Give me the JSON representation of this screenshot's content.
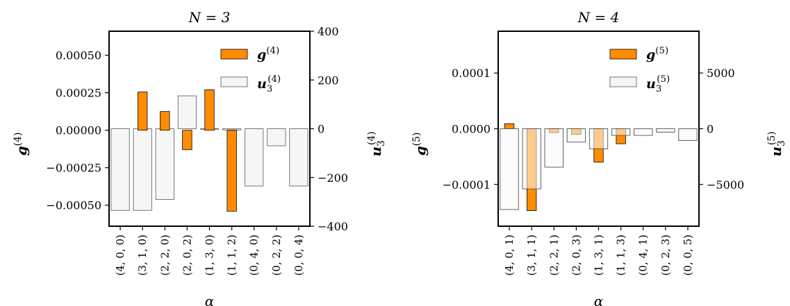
{
  "chart_data": [
    {
      "type": "bar",
      "title": "N = 3",
      "xlabel": "α",
      "categories": [
        "(4, 0, 0)",
        "(3, 1, 0)",
        "(2, 2, 0)",
        "(2, 0, 2)",
        "(1, 3, 0)",
        "(1, 1, 2)",
        "(0, 4, 0)",
        "(0, 2, 2)",
        "(0, 0, 4)"
      ],
      "left_axis": {
        "label": "g(4)",
        "ylim": [
          -0.00064,
          0.00066
        ],
        "ticks": [
          -0.0005,
          -0.00025,
          0.0,
          0.00025,
          0.0005
        ],
        "tick_labels": [
          "−0.00050",
          "−0.00025",
          "0.00000",
          "0.00025",
          "0.00050"
        ]
      },
      "right_axis": {
        "label": "u3(4)",
        "ylim": [
          -400,
          400
        ],
        "ticks": [
          -400,
          -200,
          0,
          200,
          400
        ],
        "tick_labels": [
          "−400",
          "−200",
          "0",
          "200",
          "400"
        ]
      },
      "series": [
        {
          "name": "g(4)",
          "axis": "left",
          "color": "#ff8c00",
          "values": [
            0.0,
            0.000255,
            0.000125,
            -0.00013,
            0.00027,
            -0.00054,
            0.0,
            0.0,
            0.0
          ]
        },
        {
          "name": "u3(4)",
          "axis": "right",
          "color": "#f5f5f5",
          "values": [
            -335,
            -335,
            -290,
            135,
            0,
            -5,
            -235,
            -70,
            -235
          ]
        }
      ],
      "legend": "top-right",
      "grid": false
    },
    {
      "type": "bar",
      "title": "N = 4",
      "xlabel": "α",
      "categories": [
        "(4, 0, 1)",
        "(3, 1, 1)",
        "(2, 2, 1)",
        "(2, 0, 3)",
        "(1, 3, 1)",
        "(1, 1, 3)",
        "(0, 4, 1)",
        "(0, 2, 3)",
        "(0, 0, 5)"
      ],
      "left_axis": {
        "label": "g(5)",
        "ylim": [
          -0.000175,
          0.000175
        ],
        "ticks": [
          -0.0001,
          0.0,
          0.0001
        ],
        "tick_labels": [
          "−0.0001",
          "0.0000",
          "0.0001"
        ]
      },
      "right_axis": {
        "label": "u3(5)",
        "ylim": [
          -8750,
          8750
        ],
        "ticks": [
          -5000,
          0,
          5000
        ],
        "tick_labels": [
          "−5000",
          "0",
          "5000"
        ]
      },
      "series": [
        {
          "name": "g(5)",
          "axis": "left",
          "color": "#ff8c00",
          "values": [
            9e-06,
            -0.000147,
            -7e-06,
            -1e-05,
            -6e-05,
            -2.7e-05,
            0.0,
            0.0,
            0.0
          ]
        },
        {
          "name": "u3(5)",
          "axis": "right",
          "color": "#f5f5f5",
          "values": [
            -7250,
            -5400,
            -3450,
            -1200,
            -1800,
            -600,
            -600,
            -300,
            -1050
          ]
        }
      ],
      "legend": "top-right",
      "grid": false
    }
  ]
}
